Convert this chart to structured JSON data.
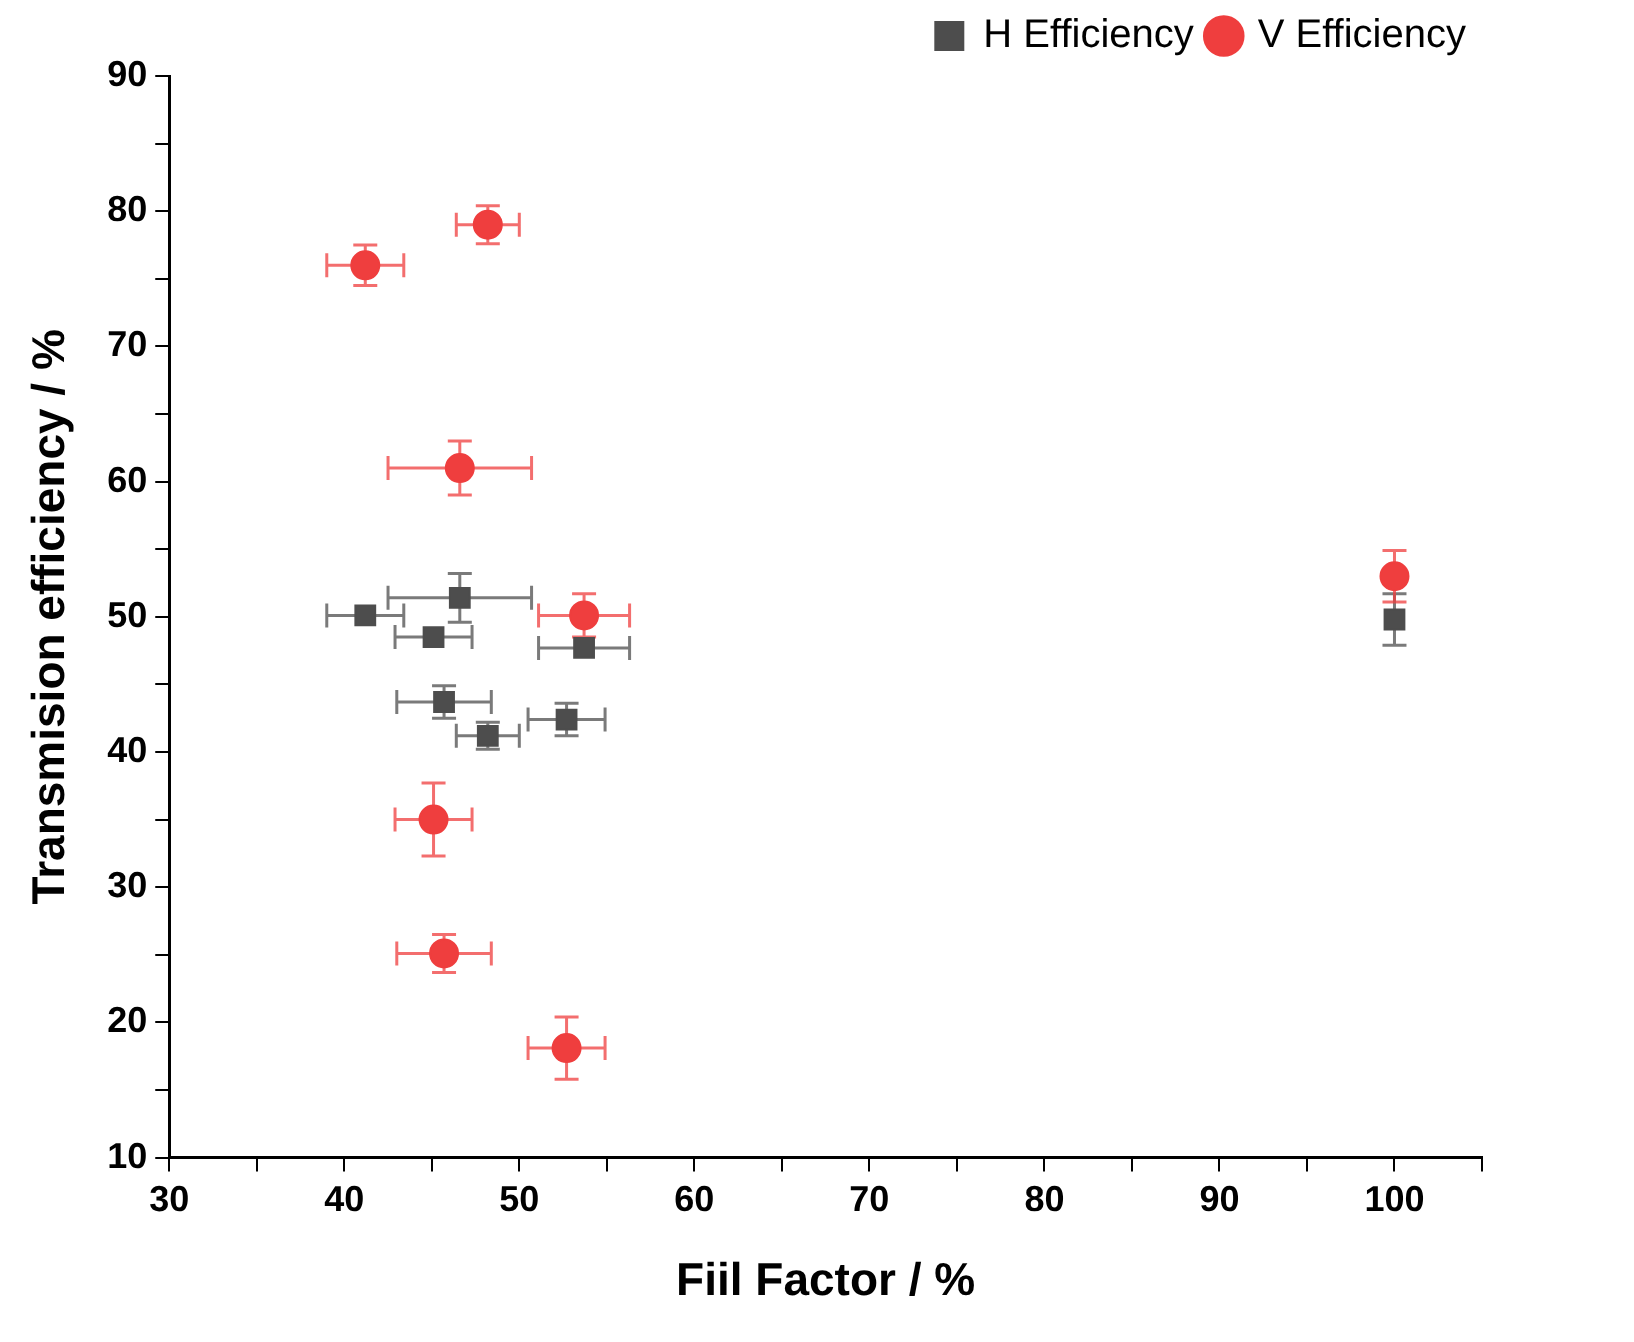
{
  "chart_data": {
    "type": "scatter",
    "xlabel": "Fiil Factor / %",
    "ylabel": "Transmision efficiency / %",
    "xlim": [
      30,
      105
    ],
    "ylim": [
      10,
      90
    ],
    "xticks": [
      30,
      {
        "value": 35,
        "label": null
      },
      40,
      {
        "value": 45,
        "label": null
      },
      50,
      {
        "value": 55,
        "label": null
      },
      60,
      {
        "value": 65,
        "label": null
      },
      70,
      {
        "value": 75,
        "label": null
      },
      80,
      {
        "value": 85,
        "label": null
      },
      90,
      {
        "value": 95,
        "label": null
      },
      100,
      {
        "value": 105,
        "label": null
      }
    ],
    "yticks": [
      10,
      {
        "value": 15,
        "label": null
      },
      20,
      {
        "value": 25,
        "label": null
      },
      30,
      {
        "value": 35,
        "label": null
      },
      40,
      {
        "value": 45,
        "label": null
      },
      50,
      {
        "value": 55,
        "label": null
      },
      60,
      {
        "value": 65,
        "label": null
      },
      70,
      {
        "value": 75,
        "label": null
      },
      80,
      {
        "value": 85,
        "label": null
      },
      90
    ],
    "grid": false,
    "legend": "top right",
    "series": [
      {
        "name": "H Efficiency",
        "color": "#4d4d4d",
        "marker": "square",
        "x": [
          41.2,
          46.6,
          45.1,
          53.7,
          45.7,
          48.2,
          52.7,
          100
        ],
        "values": [
          50.1,
          51.4,
          48.5,
          47.7,
          43.7,
          41.2,
          42.4,
          49.8
        ],
        "errors": [
          null,
          1.8,
          null,
          null,
          1.2,
          1.0,
          1.2,
          1.9
        ],
        "xerrors": [
          2.2,
          4.1,
          2.2,
          2.6,
          2.7,
          1.8,
          2.2,
          null
        ]
      },
      {
        "name": "V Efficiency",
        "color": "#ef3e3e",
        "marker": "circle",
        "x": [
          41.2,
          48.2,
          46.6,
          53.7,
          45.1,
          45.7,
          52.7,
          100
        ],
        "values": [
          76,
          79,
          61,
          50.1,
          35,
          25.1,
          18.1,
          53
        ],
        "errors": [
          1.5,
          1.4,
          2,
          1.6,
          2.7,
          1.4,
          2.3,
          1.9
        ],
        "xerrors": [
          2.2,
          1.8,
          4.1,
          2.6,
          2.2,
          2.7,
          2.2,
          null
        ]
      }
    ]
  }
}
